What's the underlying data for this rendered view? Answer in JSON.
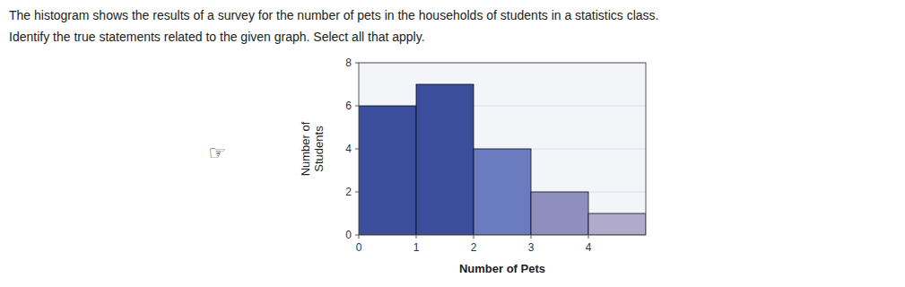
{
  "chart_data": {
    "type": "histogram",
    "title": "The histogram shows the results of a survey for the number of pets in the households of students in a statistics class.",
    "subtitle": "Identify the true statements related to the given graph. Select all that apply.",
    "annotation": "☞",
    "bins": [
      0,
      1,
      2,
      3,
      4,
      5
    ],
    "values": [
      6,
      7,
      4,
      2,
      1
    ],
    "colors": [
      "#3a4e9c",
      "#3a4e9c",
      "#6b7bbf",
      "#8e8fbf",
      "#b0aacc"
    ],
    "xlabel": "Number of Pets",
    "ylabel": "Number of\nStudents",
    "xlim": [
      0,
      5
    ],
    "ylim": [
      0,
      8
    ],
    "xticks": [
      0,
      1,
      2,
      3,
      4
    ],
    "yticks": [
      0,
      2,
      4,
      6,
      8
    ],
    "grid": true
  }
}
